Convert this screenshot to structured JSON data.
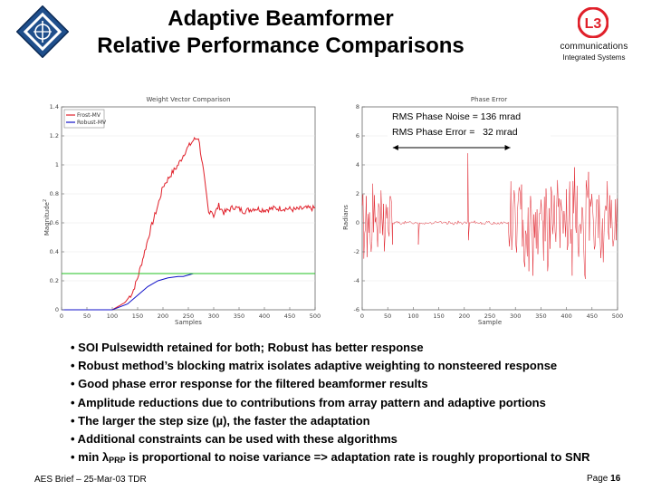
{
  "header": {
    "title_line1": "Adaptive Beamformer",
    "title_line2": "Relative Performance Comparisons"
  },
  "brand": {
    "l3_mark": "L3",
    "line1": "communications",
    "line2": "Integrated Systems",
    "accent": "#e0202a"
  },
  "chart_data": [
    {
      "type": "line",
      "title": "Weight Vector Comparison",
      "xlabel": "Samples",
      "ylabel": "Magnitude",
      "ylabel_sup": "2",
      "xlim": [
        0,
        500
      ],
      "ylim": [
        0,
        1.4
      ],
      "xticks": [
        "0",
        "50",
        "100",
        "150",
        "200",
        "250",
        "300",
        "350",
        "400",
        "450",
        "500"
      ],
      "yticks": [
        "0",
        "0.2",
        "0.4",
        "0.6",
        "0.8",
        "1",
        "1.2",
        "1.4"
      ],
      "legend": {
        "position": "top-left",
        "entries": [
          "Frost-MV",
          "Robust-MV"
        ]
      },
      "series": [
        {
          "name": "Frost-MV",
          "color": "#e0202a",
          "x": [
            0,
            100,
            125,
            140,
            150,
            160,
            175,
            190,
            200,
            215,
            230,
            245,
            260,
            270,
            280,
            288,
            291,
            294,
            300,
            310,
            320,
            340,
            360,
            380,
            400,
            420,
            440,
            460,
            480,
            500
          ],
          "y": [
            0,
            0,
            0.05,
            0.12,
            0.22,
            0.35,
            0.55,
            0.72,
            0.85,
            0.93,
            1.0,
            1.1,
            1.17,
            1.19,
            0.95,
            0.72,
            0.64,
            0.7,
            0.65,
            0.72,
            0.67,
            0.71,
            0.68,
            0.7,
            0.69,
            0.7,
            0.7,
            0.69,
            0.7,
            0.7
          ]
        },
        {
          "name": "Robust-MV",
          "color": "#1010c8",
          "x": [
            0,
            100,
            130,
            150,
            170,
            190,
            210,
            230,
            240,
            250,
            260,
            280,
            300,
            320,
            340,
            360,
            400,
            450,
            500
          ],
          "y": [
            0,
            0,
            0.04,
            0.1,
            0.16,
            0.2,
            0.22,
            0.23,
            0.23,
            0.24,
            0.25,
            0.25,
            0.25,
            0.25,
            0.25,
            0.25,
            0.25,
            0.25,
            0.25
          ]
        },
        {
          "name": "",
          "color": "#20c020",
          "x": [
            0,
            500
          ],
          "y": [
            0.25,
            0.25
          ]
        }
      ]
    },
    {
      "type": "line",
      "title": "Phase Error",
      "xlabel": "Sample",
      "ylabel": "Radians",
      "xlim": [
        0,
        500
      ],
      "ylim": [
        -6,
        8
      ],
      "xticks": [
        "0",
        "50",
        "100",
        "150",
        "200",
        "250",
        "300",
        "350",
        "400",
        "450",
        "500"
      ],
      "yticks": [
        "-6",
        "-4",
        "-2",
        "0",
        "2",
        "4",
        "6",
        "8"
      ],
      "annotations": [
        "RMS Phase Noise = 136 mrad",
        "RMS Phase Error =   32 mrad"
      ],
      "bracket": [
        60,
        290
      ],
      "series": [
        {
          "name": "",
          "color": "#e0202a",
          "segments": [
            {
              "from": 0,
              "to": 60,
              "amp": 3.5,
              "step": 1.6
            },
            {
              "from": 60,
              "to": 288,
              "amp": 0.15,
              "step": 2
            },
            {
              "from": 288,
              "to": 500,
              "amp": 4.2,
              "step": 1.6
            }
          ],
          "spikes": [
            {
              "x": 110,
              "y": -1.5
            },
            {
              "x": 207,
              "y": 4.8
            },
            {
              "x": 208,
              "y": -1.2
            }
          ]
        }
      ]
    }
  ],
  "bullets": [
    {
      "text": "• SOI Pulsewidth retained for both;  Robust has better response"
    },
    {
      "text": "• Robust method’s blocking matrix isolates adaptive weighting to nonsteered response"
    },
    {
      "text": "• Good phase error response for the filtered beamformer results"
    },
    {
      "text": "• Amplitude reductions due to contributions from array pattern and adaptive portions"
    },
    {
      "text": "• The larger the step size (µ), the faster the adaptation"
    },
    {
      "text": "• Additional constraints can be used with these algorithms"
    },
    {
      "pre": "• min ",
      "lambda": "λ",
      "sub": "PRP",
      "post": " is proportional to noise variance => adaptation rate is roughly proportional to SNR"
    }
  ],
  "footer": {
    "left": "AES Brief – 25-Mar-03  TDR",
    "page_label": "Page ",
    "page_number": "16"
  }
}
